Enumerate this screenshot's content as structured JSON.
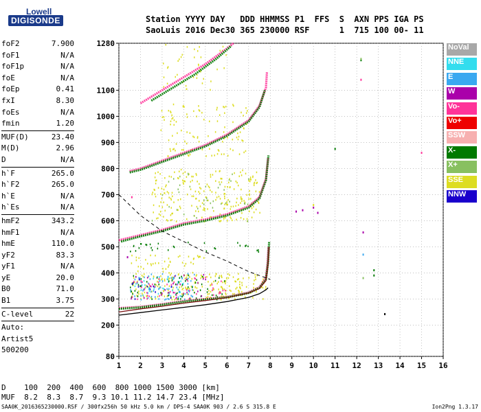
{
  "logo": {
    "line1": "Lowell",
    "line2": "DIGISONDE"
  },
  "header": {
    "line1": "Station YYYY DAY   DDD HHMMSS P1  FFS  S  AXN PPS IGA PS",
    "line2": "SaoLuis 2016 Dec30 365 230000 RSF      1  715 100 00- 11"
  },
  "params": [
    {
      "name": "foF2",
      "value": "7.900"
    },
    {
      "name": "foF1",
      "value": "N/A"
    },
    {
      "name": "foF1p",
      "value": "N/A"
    },
    {
      "name": "foE",
      "value": "N/A"
    },
    {
      "name": "foEp",
      "value": "0.41"
    },
    {
      "name": "fxI",
      "value": "8.30"
    },
    {
      "name": "foEs",
      "value": "N/A"
    },
    {
      "name": "fmin",
      "value": "1.20"
    },
    {
      "sep": true
    },
    {
      "name": "MUF(D)",
      "value": "23.40"
    },
    {
      "name": "M(D)",
      "value": "2.96"
    },
    {
      "name": "D",
      "value": "N/A"
    },
    {
      "sep": true
    },
    {
      "name": "h`F",
      "value": "265.0"
    },
    {
      "name": "h`F2",
      "value": "265.0"
    },
    {
      "name": "h`E",
      "value": "N/A"
    },
    {
      "name": "h`Es",
      "value": "N/A"
    },
    {
      "sep": true
    },
    {
      "name": "hmF2",
      "value": "343.2"
    },
    {
      "name": "hmF1",
      "value": "N/A"
    },
    {
      "name": "hmE",
      "value": "110.0"
    },
    {
      "name": "yF2",
      "value": "83.3"
    },
    {
      "name": "yF1",
      "value": "N/A"
    },
    {
      "name": "yE",
      "value": "20.0"
    },
    {
      "name": "B0",
      "value": "71.0"
    },
    {
      "name": "B1",
      "value": "3.75"
    },
    {
      "sep": true
    },
    {
      "name": "C-level",
      "value": "22"
    },
    {
      "sep": true
    },
    {
      "text": "Auto:"
    },
    {
      "text": "Artist5"
    },
    {
      "text": "500200"
    }
  ],
  "legend": [
    {
      "label": "NoVal",
      "color": "#a8a8a8"
    },
    {
      "label": "NNE",
      "color": "#33ddee"
    },
    {
      "label": "E",
      "color": "#3aa8f0"
    },
    {
      "label": "W",
      "color": "#aa00aa"
    },
    {
      "label": "Vo-",
      "color": "#ff3399"
    },
    {
      "label": "Vo+",
      "color": "#ee0000"
    },
    {
      "label": "SSW",
      "color": "#f7b0b0"
    },
    {
      "label": "X-",
      "color": "#007a00"
    },
    {
      "label": "X+",
      "color": "#88c060"
    },
    {
      "label": "SSE",
      "color": "#dddd22"
    },
    {
      "label": "NNW",
      "color": "#1a00cc"
    }
  ],
  "muf_table": {
    "line1": "D    100  200  400  600  800 1000 1500 3000 [km]",
    "line2": "MUF  8.2  8.3  8.7  9.3 10.1 11.2 14.7 23.4 [MHz]"
  },
  "footer": "SAA0K_2016365230000.RSF / 300fx256h 50 kHz 5.0 km / DPS-4 SAA0K 903 / 2.6 S 315.8 E",
  "version": "Ion2Png 1.3.17",
  "chart_data": {
    "type": "scatter",
    "xlim": [
      1,
      16
    ],
    "ylim": [
      80,
      1280
    ],
    "x_ticks": [
      1,
      2,
      3,
      4,
      5,
      6,
      7,
      8,
      9,
      10,
      11,
      12,
      13,
      14,
      15,
      16
    ],
    "y_ticks": [
      80,
      200,
      300,
      400,
      500,
      600,
      700,
      800,
      900,
      1000,
      1100,
      1280
    ],
    "y_tick_labels": [
      "80",
      "200",
      "300",
      "400",
      "500",
      "600",
      "700",
      "800",
      "900",
      "1000",
      "1100",
      "1280"
    ],
    "grid": true,
    "traces": [
      {
        "color": "#ff3399",
        "points": [
          [
            1.0,
            265
          ],
          [
            2.0,
            270
          ],
          [
            3.0,
            280
          ],
          [
            4.0,
            292
          ],
          [
            5.0,
            300
          ],
          [
            6.0,
            308
          ],
          [
            7.0,
            325
          ],
          [
            7.5,
            345
          ],
          [
            7.8,
            380
          ],
          [
            7.88,
            440
          ],
          [
            7.92,
            500
          ]
        ]
      },
      {
        "color": "#007a00",
        "points": [
          [
            1.0,
            262
          ],
          [
            2.0,
            268
          ],
          [
            3.0,
            278
          ],
          [
            4.0,
            290
          ],
          [
            5.0,
            298
          ],
          [
            6.0,
            306
          ],
          [
            7.0,
            323
          ],
          [
            7.5,
            342
          ],
          [
            7.8,
            375
          ],
          [
            7.9,
            440
          ],
          [
            7.95,
            520
          ]
        ]
      },
      {
        "color": "#ff3399",
        "points": [
          [
            1.0,
            525
          ],
          [
            2.0,
            545
          ],
          [
            3.0,
            565
          ],
          [
            4.0,
            590
          ],
          [
            5.0,
            605
          ],
          [
            6.0,
            625
          ],
          [
            7.0,
            655
          ],
          [
            7.5,
            690
          ],
          [
            7.8,
            760
          ],
          [
            7.9,
            840
          ]
        ]
      },
      {
        "color": "#007a00",
        "points": [
          [
            1.1,
            520
          ],
          [
            2.0,
            540
          ],
          [
            3.0,
            560
          ],
          [
            4.0,
            585
          ],
          [
            5.0,
            600
          ],
          [
            6.0,
            620
          ],
          [
            7.0,
            650
          ],
          [
            7.5,
            685
          ],
          [
            7.8,
            755
          ],
          [
            7.92,
            850
          ]
        ]
      },
      {
        "color": "#ff3399",
        "points": [
          [
            1.5,
            790
          ],
          [
            2.0,
            800
          ],
          [
            3.0,
            830
          ],
          [
            4.0,
            860
          ],
          [
            5.0,
            890
          ],
          [
            6.0,
            930
          ],
          [
            7.0,
            985
          ],
          [
            7.5,
            1040
          ],
          [
            7.8,
            1110
          ],
          [
            7.85,
            1170
          ]
        ]
      },
      {
        "color": "#007a00",
        "points": [
          [
            1.5,
            785
          ],
          [
            2.0,
            795
          ],
          [
            3.0,
            825
          ],
          [
            4.0,
            855
          ],
          [
            5.0,
            885
          ],
          [
            6.0,
            925
          ],
          [
            7.0,
            980
          ],
          [
            7.5,
            1035
          ],
          [
            7.75,
            1100
          ]
        ]
      },
      {
        "color": "#ff3399",
        "points": [
          [
            2.0,
            1050
          ],
          [
            3.0,
            1100
          ],
          [
            4.0,
            1150
          ],
          [
            5.0,
            1200
          ],
          [
            6.0,
            1260
          ],
          [
            6.3,
            1280
          ]
        ]
      },
      {
        "color": "#007a00",
        "points": [
          [
            2.5,
            1060
          ],
          [
            3.5,
            1110
          ],
          [
            4.5,
            1160
          ],
          [
            5.5,
            1220
          ],
          [
            6.2,
            1270
          ]
        ]
      }
    ],
    "clouds": [
      {
        "color": "#dddd22",
        "x": [
          1.5,
          7.8
        ],
        "y": [
          300,
          400
        ],
        "n": 220
      },
      {
        "color": "#3aa8f0",
        "x": [
          1.5,
          4.5
        ],
        "y": [
          300,
          400
        ],
        "n": 80
      },
      {
        "color": "#33ddee",
        "x": [
          1.5,
          4.0
        ],
        "y": [
          310,
          390
        ],
        "n": 35
      },
      {
        "color": "#007a00",
        "x": [
          1.5,
          6.0
        ],
        "y": [
          300,
          400
        ],
        "n": 60
      },
      {
        "color": "#ff3399",
        "x": [
          1.5,
          6.0
        ],
        "y": [
          300,
          390
        ],
        "n": 45
      },
      {
        "color": "#aa00aa",
        "x": [
          1.5,
          5.0
        ],
        "y": [
          300,
          400
        ],
        "n": 25
      },
      {
        "color": "#1a00cc",
        "x": [
          1.5,
          3.5
        ],
        "y": [
          300,
          380
        ],
        "n": 12
      },
      {
        "color": "#dddd22",
        "x": [
          2.5,
          7.5
        ],
        "y": [
          600,
          800
        ],
        "n": 240
      },
      {
        "color": "#88c060",
        "x": [
          2.5,
          7.0
        ],
        "y": [
          600,
          800
        ],
        "n": 40
      },
      {
        "color": "#dddd22",
        "x": [
          2.8,
          7.0
        ],
        "y": [
          850,
          1050
        ],
        "n": 110
      },
      {
        "color": "#dddd22",
        "x": [
          3.0,
          6.0
        ],
        "y": [
          1100,
          1280
        ],
        "n": 40
      },
      {
        "color": "#dddd22",
        "x": [
          1.5,
          5.0
        ],
        "y": [
          400,
          480
        ],
        "n": 45
      },
      {
        "color": "#007a00",
        "x": [
          1.5,
          7.5
        ],
        "y": [
          480,
          520
        ],
        "n": 30
      }
    ],
    "scattered_points": [
      {
        "color": "#aa00aa",
        "x": 9.5,
        "y": 640
      },
      {
        "color": "#aa00aa",
        "x": 10.0,
        "y": 650
      },
      {
        "color": "#aa00aa",
        "x": 10.2,
        "y": 630
      },
      {
        "color": "#dddd22",
        "x": 10.0,
        "y": 660
      },
      {
        "color": "#aa00aa",
        "x": 9.2,
        "y": 635
      },
      {
        "color": "#007a00",
        "x": 11.0,
        "y": 875
      },
      {
        "color": "#007a00",
        "x": 12.2,
        "y": 1215
      },
      {
        "color": "#88c060",
        "x": 12.2,
        "y": 1220
      },
      {
        "color": "#ff3399",
        "x": 12.2,
        "y": 1140
      },
      {
        "color": "#aa00aa",
        "x": 12.3,
        "y": 555
      },
      {
        "color": "#3aa8f0",
        "x": 12.3,
        "y": 470
      },
      {
        "color": "#88c060",
        "x": 12.3,
        "y": 380
      },
      {
        "color": "#007a00",
        "x": 12.8,
        "y": 410
      },
      {
        "color": "#007a00",
        "x": 12.8,
        "y": 390
      },
      {
        "color": "#000000",
        "x": 13.3,
        "y": 242
      },
      {
        "color": "#ff3399",
        "x": 15.0,
        "y": 860
      },
      {
        "color": "#aa00aa",
        "x": 1.4,
        "y": 460
      },
      {
        "color": "#ff3399",
        "x": 1.6,
        "y": 690
      }
    ],
    "profile_curve": [
      [
        1.0,
        238
      ],
      [
        2.0,
        248
      ],
      [
        3.0,
        258
      ],
      [
        4.0,
        268
      ],
      [
        5.0,
        278
      ],
      [
        6.0,
        290
      ],
      [
        7.0,
        306
      ],
      [
        7.5,
        320
      ],
      [
        7.8,
        335
      ],
      [
        7.9,
        343
      ]
    ],
    "x_trace_curve": [
      [
        1.0,
        250
      ],
      [
        2.0,
        262
      ],
      [
        3.0,
        272
      ],
      [
        4.0,
        284
      ],
      [
        5.0,
        294
      ],
      [
        6.0,
        305
      ],
      [
        7.0,
        323
      ],
      [
        7.5,
        340
      ],
      [
        7.8,
        370
      ],
      [
        7.9,
        430
      ],
      [
        7.95,
        500
      ]
    ],
    "dashed_curve": [
      [
        1.0,
        700
      ],
      [
        2.0,
        620
      ],
      [
        3.0,
        560
      ],
      [
        4.0,
        520
      ],
      [
        5.0,
        480
      ],
      [
        6.0,
        445
      ],
      [
        7.0,
        405
      ],
      [
        7.5,
        390
      ],
      [
        8.0,
        375
      ]
    ]
  }
}
